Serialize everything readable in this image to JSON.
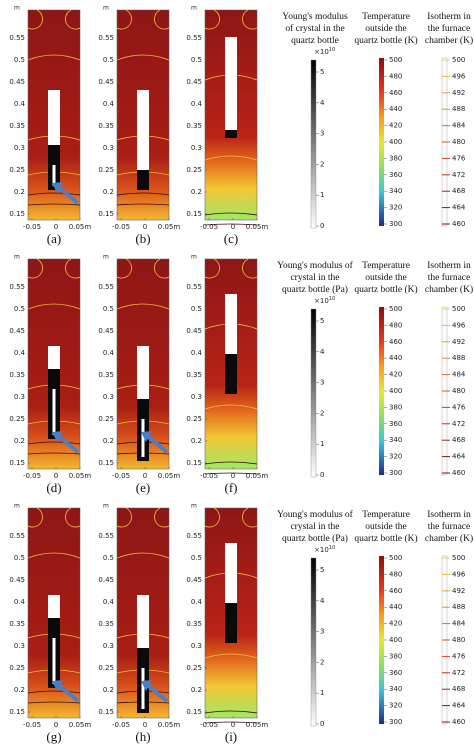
{
  "axis": {
    "unit": "m",
    "yticks": [
      0.55,
      0.5,
      0.45,
      0.4,
      0.35,
      0.3,
      0.25,
      0.2,
      0.15
    ],
    "xticks": [
      -0.05,
      0,
      {
        "value": 0.05,
        "label": "0.05m"
      }
    ]
  },
  "colorbar_ticks": {
    "youngs": [
      5,
      4,
      3,
      2,
      1,
      0
    ],
    "temperature": [
      500,
      480,
      460,
      440,
      420,
      400,
      380,
      360,
      340,
      320,
      300
    ],
    "isotherm": [
      500,
      496,
      492,
      488,
      484,
      480,
      476,
      472,
      468,
      464,
      460
    ],
    "multiplier": {
      "base": "×10",
      "exponent": "10"
    }
  },
  "rows": [
    {
      "panels": [
        {
          "label": "(a)"
        },
        {
          "label": "(b)"
        },
        {
          "label": "(c)"
        }
      ],
      "colorbars": [
        {
          "title": [
            "Young's modulus",
            "of crystal in the",
            "quartz bottle"
          ]
        },
        {
          "title": [
            "Temperature",
            "outside the",
            "quartz bottle (K)"
          ]
        },
        {
          "title": [
            "Isotherm in",
            "the furnace",
            "chamber (K)"
          ]
        }
      ]
    },
    {
      "panels": [
        {
          "label": "(d)"
        },
        {
          "label": "(e)"
        },
        {
          "label": "(f)"
        }
      ],
      "colorbars": [
        {
          "title": [
            "Young's modulus of",
            "crystal in the",
            "quartz bottle (Pa)"
          ]
        },
        {
          "title": [
            "Temperature",
            "outside the",
            "quartz bottle (K)"
          ]
        },
        {
          "title": [
            "Isotherm in",
            "the furnace",
            "chamber (K)"
          ]
        }
      ]
    },
    {
      "panels": [
        {
          "label": "(g)"
        },
        {
          "label": "(h)"
        },
        {
          "label": "(i)"
        }
      ],
      "colorbars": [
        {
          "title": [
            "Young's modulus of",
            "crystal in the",
            "quartz bottle (Pa)"
          ]
        },
        {
          "title": [
            "Temperature",
            "outside the",
            "quartz bottle (K)"
          ]
        },
        {
          "title": [
            "Isotherm in",
            "the furnace",
            "chamber (K)"
          ]
        }
      ]
    }
  ]
}
